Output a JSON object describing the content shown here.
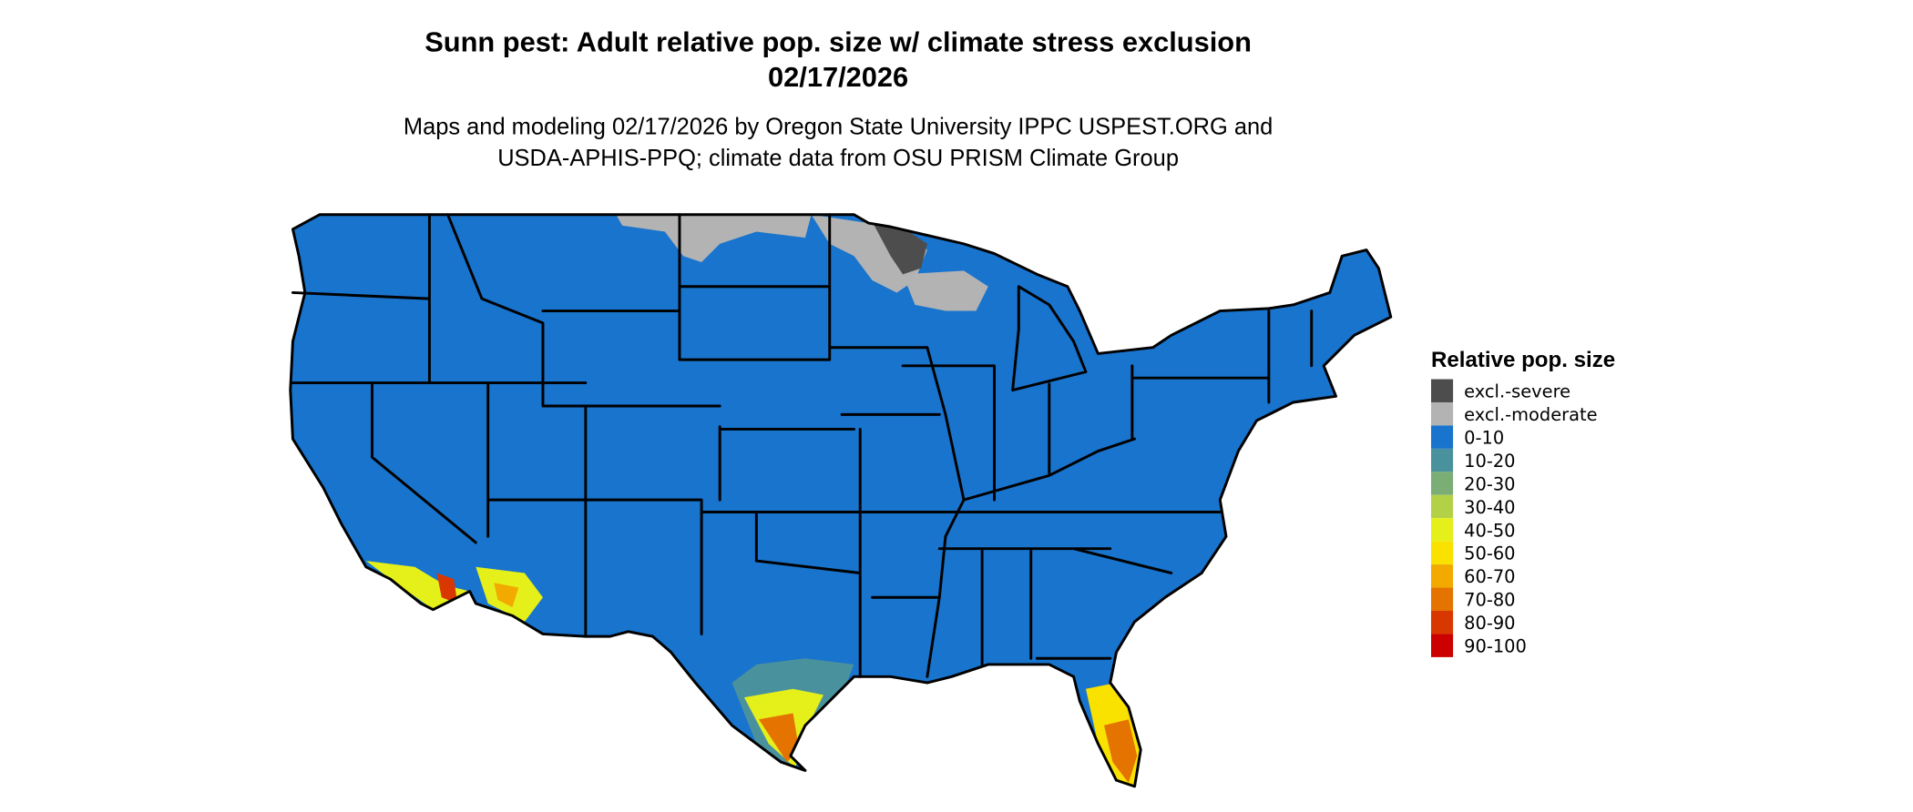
{
  "title": {
    "line1": "Sunn pest: Adult relative pop. size w/ climate stress exclusion",
    "line2": "02/17/2026"
  },
  "subtitle": {
    "line1": "Maps and modeling 02/17/2026 by Oregon State University IPPC USPEST.ORG and",
    "line2": "USDA-APHIS-PPQ; climate data from OSU PRISM Climate Group"
  },
  "legend": {
    "title": "Relative pop. size",
    "items": [
      {
        "label": "excl.-severe",
        "color": "#4d4d4d"
      },
      {
        "label": "excl.-moderate",
        "color": "#b3b3b3"
      },
      {
        "label": "0-10",
        "color": "#1874cd"
      },
      {
        "label": "10-20",
        "color": "#4a919e"
      },
      {
        "label": "20-30",
        "color": "#7bae74"
      },
      {
        "label": "30-40",
        "color": "#b2d147"
      },
      {
        "label": "40-50",
        "color": "#e5ef19"
      },
      {
        "label": "50-60",
        "color": "#f9e100"
      },
      {
        "label": "60-70",
        "color": "#f2a900"
      },
      {
        "label": "70-80",
        "color": "#e47300"
      },
      {
        "label": "80-90",
        "color": "#d93700"
      },
      {
        "label": "90-100",
        "color": "#cc0000"
      }
    ],
    "placement": "right"
  },
  "map": {
    "region": "Contiguous United States",
    "dominant_class": "0-10"
  }
}
